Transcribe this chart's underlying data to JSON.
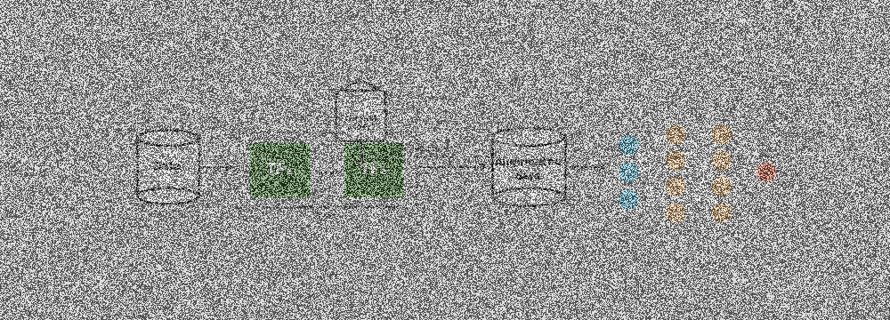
{
  "bg_color": "#b8b8b8",
  "cylinder_color": "#d8d8d8",
  "cylinder_edge": "#222222",
  "tf_box_color": "#3a6a2a",
  "tf_box_edge": "#4a8a3a",
  "arrow_color": "#333333",
  "human_circle_color": "#cccccc",
  "human_circle_edge": "#222222",
  "nn_blue": "#5bb8d4",
  "nn_orange": "#e8b87a",
  "nn_red": "#d9694a",
  "white_line": "#ffffff",
  "data_label": "Data",
  "tf1_label": "TF₁",
  "tf2_label": "TF₂",
  "aug_label1": "Augmented",
  "aug_label2": "data",
  "human_label1": "Human",
  "human_label2": "expert",
  "tf_seq_label": "TFᵢ sequences",
  "retrain_label": "retrain",
  "noise_alpha": 0.55,
  "noise_seed": 42,
  "fig_width": 10.0,
  "fig_height": 3.6,
  "dpi": 100
}
